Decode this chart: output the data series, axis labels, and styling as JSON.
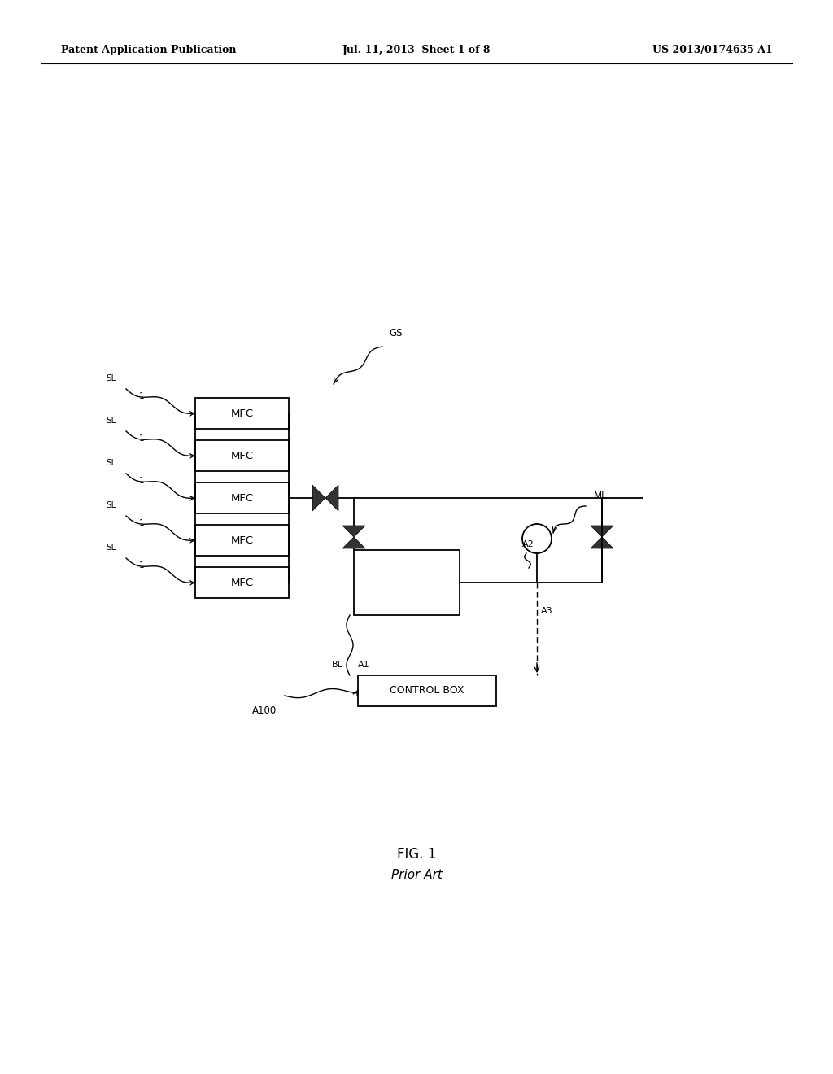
{
  "bg_color": "#ffffff",
  "header_left": "Patent Application Publication",
  "header_center": "Jul. 11, 2013  Sheet 1 of 8",
  "header_right": "US 2013/0174635 A1",
  "fig_label": "FIG. 1",
  "fig_sublabel": "Prior Art"
}
